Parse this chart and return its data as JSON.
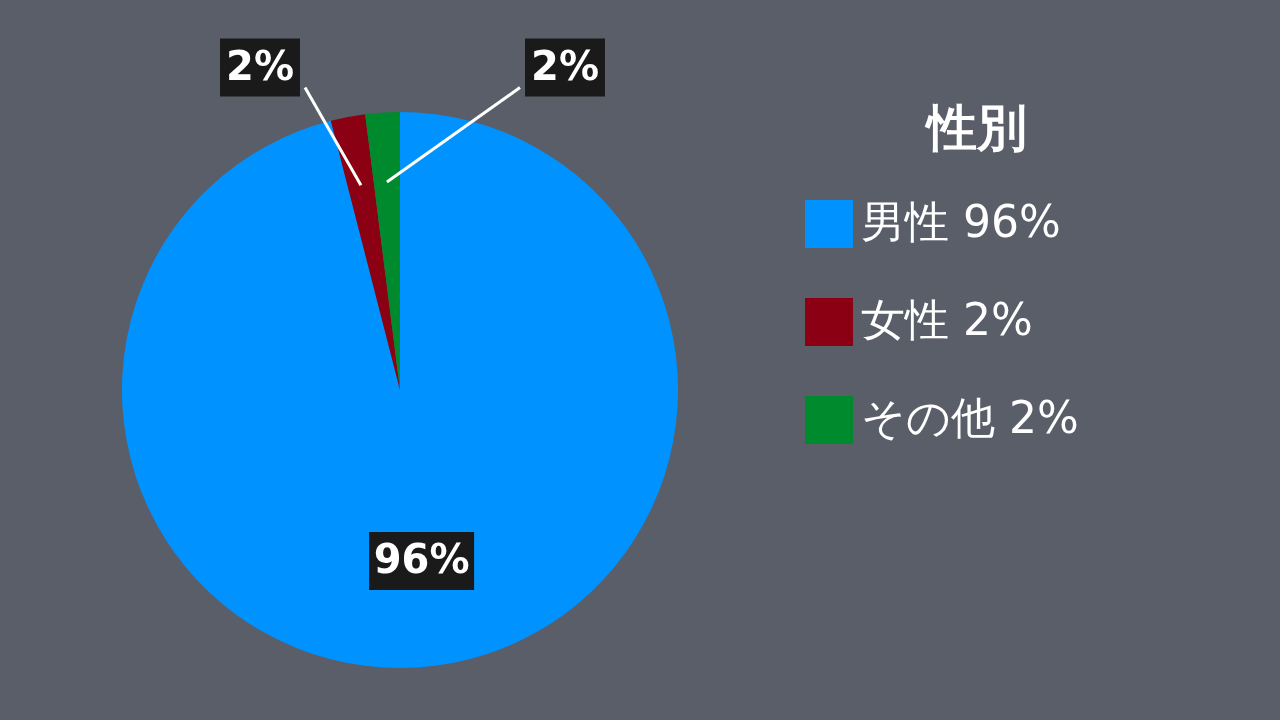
{
  "chart_data": {
    "type": "pie",
    "legend_title": "性別",
    "categories": [
      "男性",
      "女性",
      "その他"
    ],
    "values": [
      96,
      2,
      2
    ],
    "colors": [
      "#0093ff",
      "#8b0012",
      "#008a2e"
    ],
    "value_labels": [
      "96%",
      "2%",
      "2%"
    ],
    "legend": "right"
  }
}
